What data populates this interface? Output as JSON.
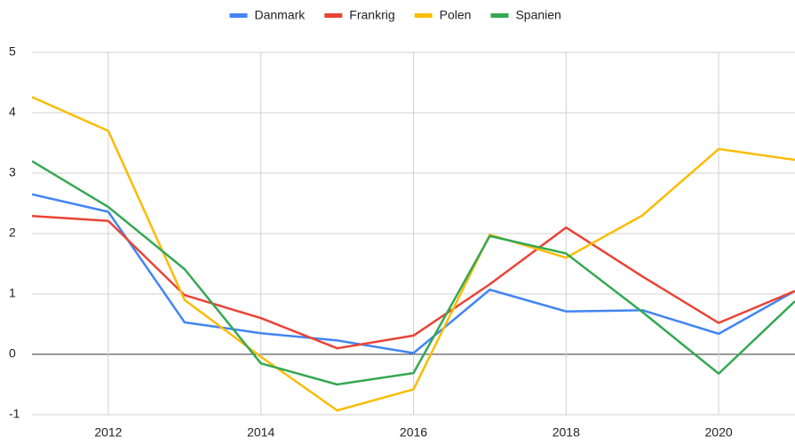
{
  "chart_data": {
    "type": "line",
    "x": [
      2011,
      2012,
      2013,
      2014,
      2015,
      2016,
      2017,
      2018,
      2019,
      2020,
      2021
    ],
    "series": [
      {
        "name": "Danmark",
        "color": "#4285f4",
        "values": [
          2.65,
          2.36,
          0.53,
          0.35,
          0.23,
          0.02,
          1.07,
          0.71,
          0.73,
          0.34,
          1.05
        ]
      },
      {
        "name": "Frankrig",
        "color": "#ea4335",
        "values": [
          2.29,
          2.21,
          0.98,
          0.6,
          0.1,
          0.31,
          1.16,
          2.1,
          1.29,
          0.52,
          1.05
        ]
      },
      {
        "name": "Polen",
        "color": "#fbbc04",
        "values": [
          4.26,
          3.7,
          0.9,
          -0.04,
          -0.93,
          -0.58,
          1.98,
          1.6,
          2.3,
          3.4,
          3.22
        ]
      },
      {
        "name": "Spanien",
        "color": "#34a853",
        "values": [
          3.2,
          2.44,
          1.41,
          -0.15,
          -0.5,
          -0.31,
          1.96,
          1.67,
          0.7,
          -0.32,
          0.88
        ]
      }
    ],
    "xlim": [
      2011,
      2021
    ],
    "xticks": [
      2012,
      2014,
      2016,
      2018,
      2020
    ],
    "ylim": [
      -1,
      5
    ],
    "yticks": [
      -1,
      0,
      1,
      2,
      3,
      4,
      5
    ],
    "grid": true,
    "legend": "top"
  }
}
